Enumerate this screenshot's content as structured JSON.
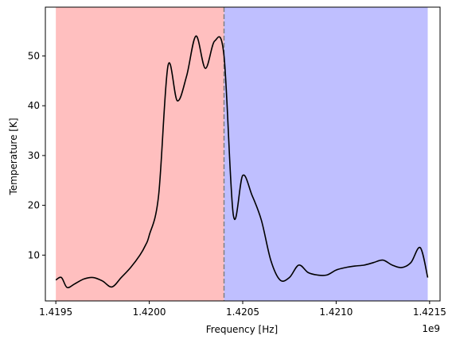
{
  "chart_data": {
    "type": "line",
    "xlabel": "Frequency [Hz]",
    "ylabel": "Temperature [K]",
    "x_offset_label": "1e9",
    "xlim": [
      1.419444,
      1.421556
    ],
    "ylim": [
      0.8,
      59.8
    ],
    "x_ticks": [
      {
        "value": 1.4195,
        "label": "1.4195"
      },
      {
        "value": 1.42,
        "label": "1.4200"
      },
      {
        "value": 1.4205,
        "label": "1.4205"
      },
      {
        "value": 1.421,
        "label": "1.4210"
      },
      {
        "value": 1.4215,
        "label": "1.4215"
      }
    ],
    "y_ticks": [
      {
        "value": 10,
        "label": "10"
      },
      {
        "value": 20,
        "label": "20"
      },
      {
        "value": 30,
        "label": "30"
      },
      {
        "value": 40,
        "label": "40"
      },
      {
        "value": 50,
        "label": "50"
      }
    ],
    "regions": [
      {
        "x_start": 1.4195,
        "x_end": 1.4204,
        "color": "#ff0000",
        "opacity": 0.25
      },
      {
        "x_start": 1.4204,
        "x_end": 1.42149,
        "color": "#0000ff",
        "opacity": 0.25
      }
    ],
    "vline": {
      "x": 1.4204,
      "color": "#808080",
      "style": "dashed"
    },
    "series": [
      {
        "color": "#000000",
        "x": [
          1.4195,
          1.41953,
          1.41956,
          1.4196,
          1.41965,
          1.4197,
          1.41975,
          1.4198,
          1.41985,
          1.4199,
          1.41995,
          1.41998,
          1.42,
          1.42005,
          1.4201,
          1.42015,
          1.4202,
          1.42025,
          1.4203,
          1.42035,
          1.4204,
          1.42045,
          1.4205,
          1.42055,
          1.4206,
          1.42065,
          1.4207,
          1.42075,
          1.4208,
          1.42085,
          1.4209,
          1.42095,
          1.421,
          1.42105,
          1.4211,
          1.42115,
          1.4212,
          1.42125,
          1.4213,
          1.42135,
          1.4214,
          1.42145,
          1.42149
        ],
        "y": [
          5.0,
          5.5,
          3.5,
          4.2,
          5.2,
          5.5,
          4.8,
          3.6,
          5.5,
          7.5,
          10.0,
          12.0,
          14.0,
          22.0,
          48.0,
          41.0,
          46.0,
          54.0,
          47.5,
          53.0,
          50.0,
          18.0,
          26.0,
          22.0,
          17.0,
          9.0,
          5.0,
          5.5,
          8.0,
          6.5,
          6.0,
          6.0,
          7.0,
          7.5,
          7.8,
          8.0,
          8.5,
          9.0,
          8.0,
          7.5,
          8.5,
          11.5,
          5.5
        ]
      }
    ]
  }
}
